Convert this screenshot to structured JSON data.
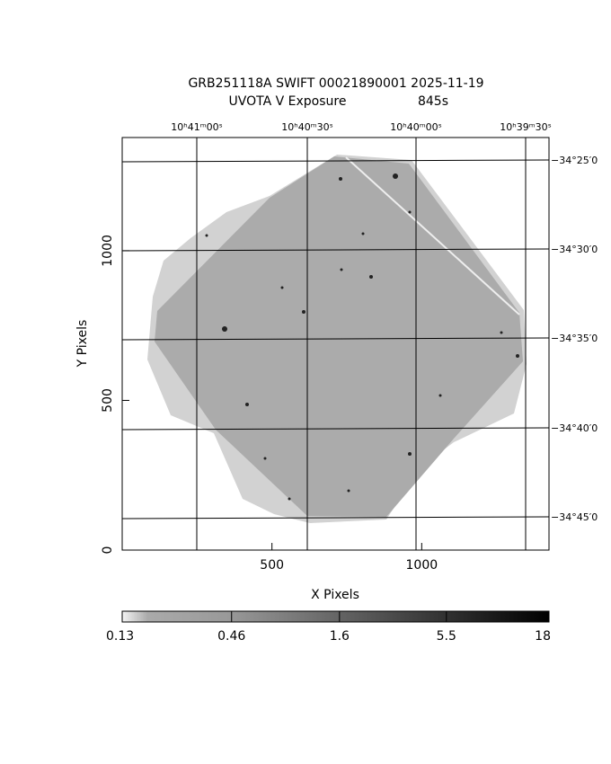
{
  "chart_data": {
    "type": "image",
    "title": "GRB251118A SWIFT 00021890001 2025-11-19",
    "subtitle": "UVOTA V Exposure",
    "exposure": "845s",
    "x_label": "X Pixels",
    "y_label": "Y Pixels",
    "xlim": [
      0,
      1425
    ],
    "ylim": [
      0,
      1378
    ],
    "xticks": [
      500,
      1000
    ],
    "yticks": [
      0,
      500,
      1000
    ],
    "ra_labels": [
      "10ʰ41ᵐ00ˢ",
      "10ʰ40ᵐ30ˢ",
      "10ʰ40ᵐ00ˢ",
      "10ʰ39ᵐ30ˢ"
    ],
    "dec_labels": [
      "−34°25′0",
      "−34°30′0",
      "−34°35′0",
      "−34°40′0",
      "−34°45′0"
    ],
    "colorbar": {
      "lim": [
        0.13,
        18
      ],
      "log": true,
      "ticks": [
        0.13,
        0.46,
        1.6,
        5.5,
        18
      ]
    }
  }
}
